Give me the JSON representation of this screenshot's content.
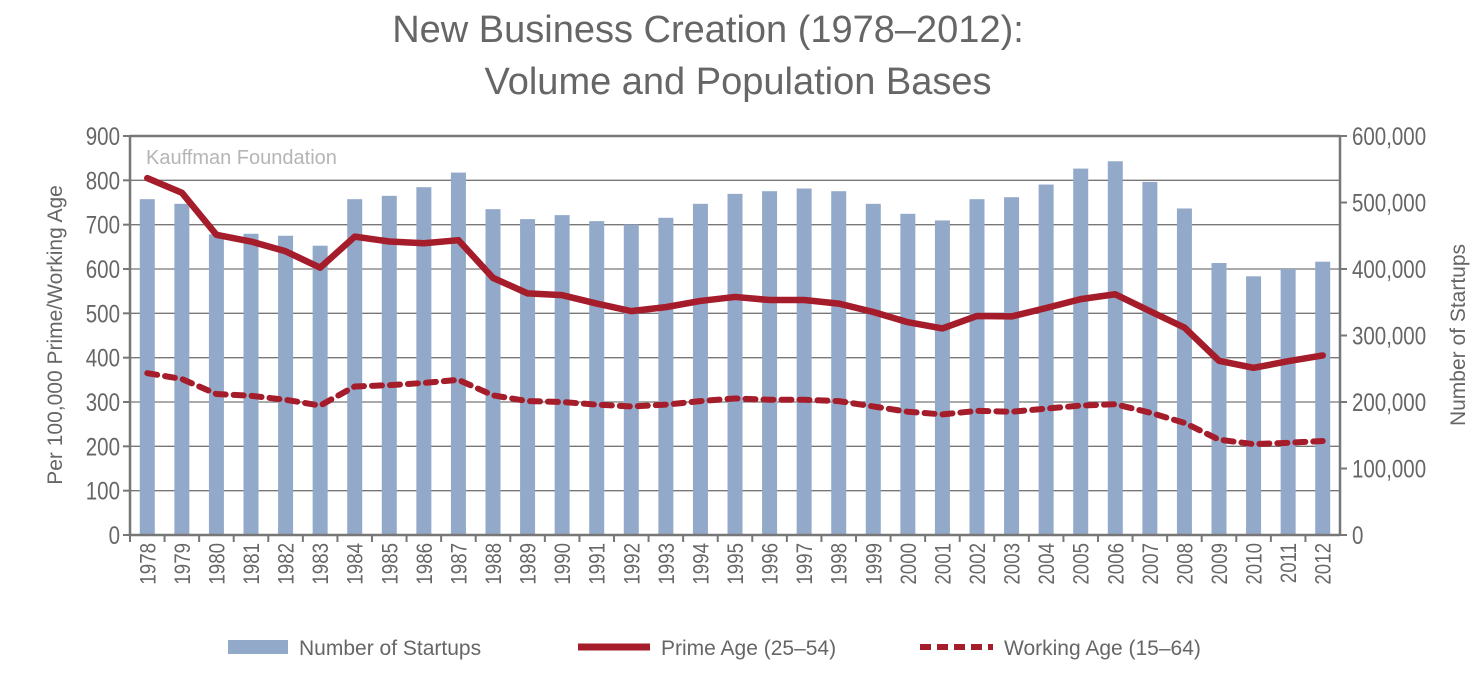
{
  "chart_data": {
    "type": "bar",
    "title": "New Business Creation (1978–2012):",
    "subtitle": "Volume and Population Bases",
    "watermark": "Kauffman Foundation",
    "ylabel": "Per 100,000 Prime/Working Age",
    "y2label": "Number of Startups",
    "ylim": [
      0,
      900
    ],
    "y2lim": [
      0,
      600000
    ],
    "yticks": [
      "0",
      "100",
      "200",
      "300",
      "400",
      "500",
      "600",
      "700",
      "800",
      "900"
    ],
    "y2ticks": [
      "0",
      "100,000",
      "200,000",
      "300,000",
      "400,000",
      "500,000",
      "600,000"
    ],
    "grid": true,
    "legend_position": "bottom",
    "categories": [
      "1978",
      "1979",
      "1980",
      "1981",
      "1982",
      "1983",
      "1984",
      "1985",
      "1986",
      "1987",
      "1988",
      "1989",
      "1990",
      "1991",
      "1992",
      "1993",
      "1994",
      "1995",
      "1996",
      "1997",
      "1998",
      "1999",
      "2000",
      "2001",
      "2002",
      "2003",
      "2004",
      "2005",
      "2006",
      "2007",
      "2008",
      "2009",
      "2010",
      "2011",
      "2012"
    ],
    "series": [
      {
        "name": "Number of Startups",
        "type": "bar",
        "axis": "right",
        "color": "#93a9c9",
        "values": [
          505000,
          498000,
          452000,
          453000,
          450000,
          435000,
          505000,
          510000,
          523000,
          545000,
          490000,
          475000,
          481000,
          472000,
          467000,
          477000,
          498000,
          513000,
          517000,
          521000,
          517000,
          498000,
          483000,
          473000,
          505000,
          508000,
          527000,
          551000,
          562000,
          531000,
          491000,
          409000,
          389000,
          400000,
          411000
        ]
      },
      {
        "name": "Prime Age (25–54)",
        "type": "line",
        "axis": "left",
        "color": "#a51c2a",
        "dash": false,
        "values": [
          805,
          772,
          677,
          662,
          640,
          603,
          673,
          662,
          658,
          665,
          580,
          545,
          541,
          522,
          505,
          514,
          528,
          537,
          530,
          530,
          522,
          503,
          480,
          466,
          494,
          493,
          512,
          532,
          543,
          505,
          468,
          393,
          377,
          392,
          405
        ]
      },
      {
        "name": "Working Age (15–64)",
        "type": "line",
        "axis": "left",
        "color": "#a51c2a",
        "dash": true,
        "values": [
          365,
          352,
          318,
          314,
          305,
          292,
          335,
          338,
          343,
          350,
          315,
          302,
          300,
          294,
          290,
          294,
          302,
          308,
          305,
          305,
          302,
          290,
          278,
          272,
          280,
          278,
          285,
          292,
          295,
          276,
          253,
          215,
          205,
          208,
          212
        ]
      }
    ]
  }
}
